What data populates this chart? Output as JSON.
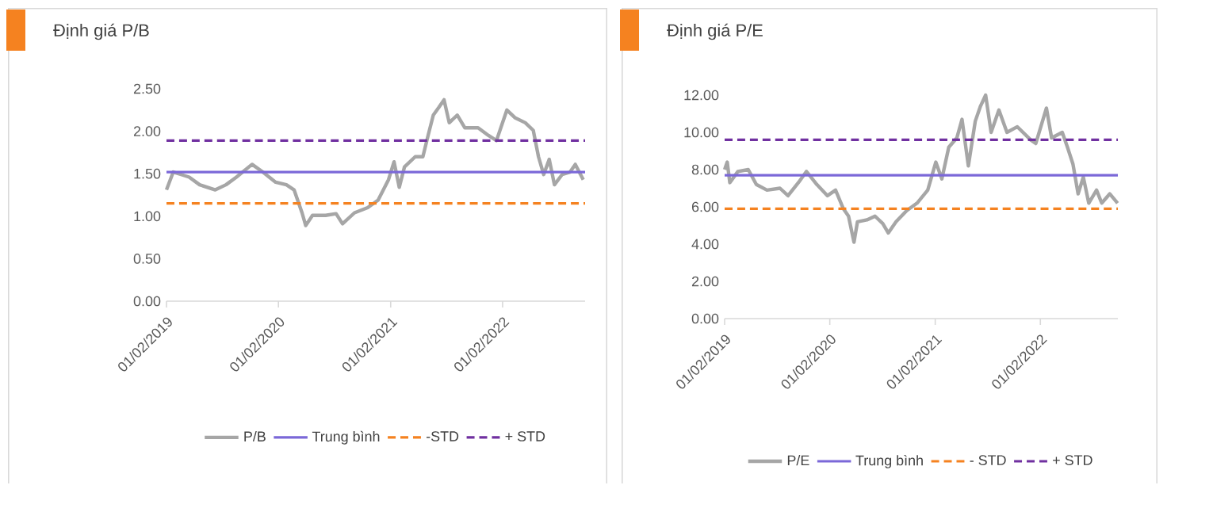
{
  "chart_data": [
    {
      "type": "line",
      "title": "Định giá P/B",
      "xlim": [
        "2019-02-01",
        "2022-10-28"
      ],
      "ylim": [
        0,
        2.5
      ],
      "xticks": [
        {
          "value": "2019-02-01",
          "label": "01/02/2019"
        },
        {
          "value": "2020-02-01",
          "label": "01/02/2020"
        },
        {
          "value": "2021-02-01",
          "label": "01/02/2021"
        },
        {
          "value": "2022-02-01",
          "label": "01/02/2022"
        }
      ],
      "yticks": [
        {
          "value": 0,
          "label": "0.00"
        },
        {
          "value": 0.5,
          "label": "0.50"
        },
        {
          "value": 1,
          "label": "1.00"
        },
        {
          "value": 1.5,
          "label": "1.50"
        },
        {
          "value": 2,
          "label": "2.00"
        },
        {
          "value": 2.5,
          "label": "2.50"
        }
      ],
      "legend": "bottom",
      "grid": false,
      "marker": "none",
      "series": [
        {
          "name": "P/B",
          "color": "#a6a6a6",
          "line_style": "solid",
          "x": [
            "2019-02-01",
            "2019-02-23",
            "2019-03-21",
            "2019-04-16",
            "2019-05-20",
            "2019-07-10",
            "2019-08-14",
            "2019-09-17",
            "2019-11-07",
            "2019-12-12",
            "2020-01-23",
            "2020-02-27",
            "2020-03-23",
            "2020-04-18",
            "2020-04-30",
            "2020-05-22",
            "2020-07-04",
            "2020-08-07",
            "2020-08-28",
            "2020-10-06",
            "2020-11-18",
            "2020-12-22",
            "2021-01-25",
            "2021-02-12",
            "2021-03-01",
            "2021-03-18",
            "2021-04-22",
            "2021-05-17",
            "2021-06-03",
            "2021-06-20",
            "2021-07-08",
            "2021-07-25",
            "2021-08-11",
            "2021-09-06",
            "2021-10-01",
            "2021-11-13",
            "2021-12-17",
            "2022-01-12",
            "2022-02-15",
            "2022-03-13",
            "2022-04-16",
            "2022-05-12",
            "2022-05-29",
            "2022-06-15",
            "2022-07-03",
            "2022-07-20",
            "2022-08-14",
            "2022-09-09",
            "2022-09-26",
            "2022-10-22"
          ],
          "values": [
            1.31,
            1.52,
            1.49,
            1.46,
            1.37,
            1.31,
            1.37,
            1.46,
            1.61,
            1.52,
            1.4,
            1.37,
            1.31,
            1.04,
            0.89,
            1.01,
            1.01,
            1.03,
            0.91,
            1.04,
            1.1,
            1.19,
            1.43,
            1.64,
            1.34,
            1.58,
            1.7,
            1.7,
            1.95,
            2.19,
            2.28,
            2.37,
            2.1,
            2.19,
            2.04,
            2.04,
            1.95,
            1.89,
            2.25,
            2.16,
            2.1,
            2.01,
            1.7,
            1.49,
            1.67,
            1.37,
            1.49,
            1.52,
            1.61,
            1.43
          ]
        },
        {
          "name": "Trung bình",
          "color": "#7b68d8",
          "line_style": "solid",
          "x": [
            "2019-02-01",
            "2022-10-28"
          ],
          "values": [
            1.52,
            1.52
          ]
        },
        {
          "name": "-STD",
          "color": "#f58220",
          "line_style": "dashed",
          "x": [
            "2019-02-01",
            "2022-10-28"
          ],
          "values": [
            1.15,
            1.15
          ]
        },
        {
          "name": "+ STD",
          "color": "#7030a0",
          "line_style": "dashed",
          "x": [
            "2019-02-01",
            "2022-10-28"
          ],
          "values": [
            1.89,
            1.89
          ]
        }
      ]
    },
    {
      "type": "line",
      "title": "Định giá P/E",
      "xlim": [
        "2019-02-01",
        "2022-10-28"
      ],
      "ylim": [
        0,
        12
      ],
      "xticks": [
        {
          "value": "2019-02-01",
          "label": "01/02/2019"
        },
        {
          "value": "2020-02-01",
          "label": "01/02/2020"
        },
        {
          "value": "2021-02-01",
          "label": "01/02/2021"
        },
        {
          "value": "2022-02-01",
          "label": "01/02/2022"
        }
      ],
      "yticks": [
        {
          "value": 0,
          "label": "0.00"
        },
        {
          "value": 2,
          "label": "2.00"
        },
        {
          "value": 4,
          "label": "4.00"
        },
        {
          "value": 6,
          "label": "6.00"
        },
        {
          "value": 8,
          "label": "8.00"
        },
        {
          "value": 10,
          "label": "10.00"
        },
        {
          "value": 12,
          "label": "12.00"
        }
      ],
      "legend": "bottom",
      "grid": false,
      "marker": "none",
      "series": [
        {
          "name": "P/E",
          "color": "#a6a6a6",
          "line_style": "solid",
          "x": [
            "2019-02-01",
            "2019-02-10",
            "2019-02-19",
            "2019-03-19",
            "2019-04-24",
            "2019-05-22",
            "2019-06-28",
            "2019-08-12",
            "2019-09-09",
            "2019-10-15",
            "2019-11-12",
            "2019-12-18",
            "2020-01-24",
            "2020-02-21",
            "2020-03-19",
            "2020-04-06",
            "2020-04-25",
            "2020-05-07",
            "2020-06-09",
            "2020-07-07",
            "2020-08-03",
            "2020-08-22",
            "2020-09-18",
            "2020-10-25",
            "2020-11-30",
            "2021-01-06",
            "2021-02-03",
            "2021-02-24",
            "2021-03-20",
            "2021-04-17",
            "2021-05-05",
            "2021-05-27",
            "2021-06-20",
            "2021-07-08",
            "2021-07-26",
            "2021-08-14",
            "2021-09-10",
            "2021-10-08",
            "2021-11-13",
            "2021-12-29",
            "2022-01-16",
            "2022-02-22",
            "2022-03-12",
            "2022-04-18",
            "2022-05-06",
            "2022-05-25",
            "2022-06-12",
            "2022-06-30",
            "2022-07-19",
            "2022-08-15",
            "2022-09-02",
            "2022-09-30",
            "2022-10-27"
          ],
          "values": [
            8.0,
            8.4,
            7.3,
            7.9,
            8.0,
            7.2,
            6.9,
            7.0,
            6.6,
            7.3,
            7.9,
            7.2,
            6.6,
            6.9,
            5.9,
            5.5,
            4.1,
            5.2,
            5.3,
            5.5,
            5.1,
            4.6,
            5.2,
            5.8,
            6.2,
            6.9,
            8.4,
            7.5,
            9.2,
            9.7,
            10.7,
            8.2,
            10.6,
            11.4,
            12.0,
            10.0,
            11.2,
            10.0,
            10.3,
            9.6,
            9.4,
            11.3,
            9.7,
            10.0,
            9.2,
            8.3,
            6.7,
            7.6,
            6.2,
            6.9,
            6.2,
            6.7,
            6.2
          ]
        },
        {
          "name": "Trung bình",
          "color": "#7b68d8",
          "line_style": "solid",
          "x": [
            "2019-02-01",
            "2022-10-28"
          ],
          "values": [
            7.7,
            7.7
          ]
        },
        {
          "name": "- STD",
          "color": "#f58220",
          "line_style": "dashed",
          "x": [
            "2019-02-01",
            "2022-10-28"
          ],
          "values": [
            5.9,
            5.9
          ]
        },
        {
          "name": "+ STD",
          "color": "#7030a0",
          "line_style": "dashed",
          "x": [
            "2019-02-01",
            "2022-10-28"
          ],
          "values": [
            9.6,
            9.6
          ]
        }
      ]
    }
  ]
}
